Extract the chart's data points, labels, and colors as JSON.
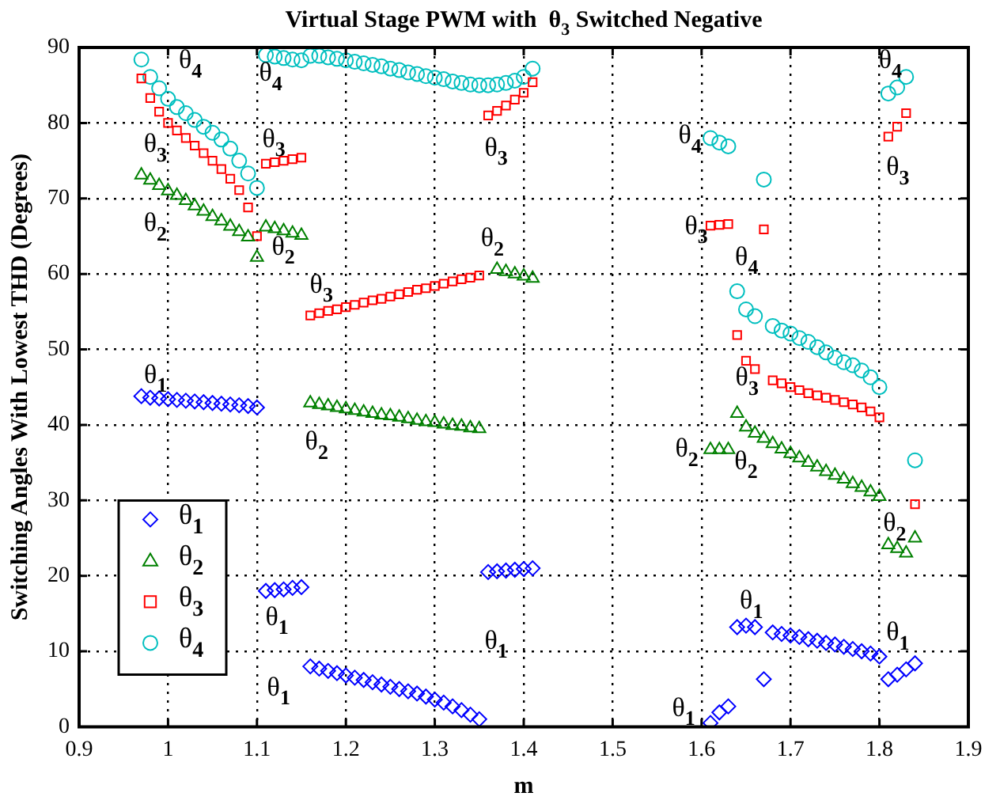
{
  "chart_data": {
    "type": "scatter",
    "title": "Virtual Stage PWM with  θ$_{3}$ Switched Negative",
    "xlabel": "m",
    "ylabel": "Switching Angles With Lowest THD (Degrees)",
    "xlim": [
      0.9,
      1.9
    ],
    "xticks": [
      0.9,
      1,
      1.1,
      1.2,
      1.3,
      1.4,
      1.5,
      1.6,
      1.7,
      1.8,
      1.9
    ],
    "ylim": [
      0,
      90
    ],
    "yticks": [
      0,
      10,
      20,
      30,
      40,
      50,
      60,
      70,
      80,
      90
    ],
    "grid": true,
    "legend": "bottom left",
    "series": [
      {
        "name": "θ$_{1}$",
        "color": "#0000ff",
        "marker": "diamond",
        "x": [
          0.97,
          0.98,
          0.99,
          1.0,
          1.01,
          1.02,
          1.03,
          1.04,
          1.05,
          1.06,
          1.07,
          1.08,
          1.09,
          1.1,
          1.11,
          1.12,
          1.13,
          1.14,
          1.15,
          1.16,
          1.17,
          1.18,
          1.19,
          1.2,
          1.21,
          1.22,
          1.23,
          1.24,
          1.25,
          1.26,
          1.27,
          1.28,
          1.29,
          1.3,
          1.31,
          1.32,
          1.33,
          1.34,
          1.35,
          1.36,
          1.37,
          1.38,
          1.39,
          1.4,
          1.41,
          1.61,
          1.62,
          1.63,
          1.64,
          1.65,
          1.66,
          1.67,
          1.68,
          1.69,
          1.7,
          1.71,
          1.72,
          1.73,
          1.74,
          1.75,
          1.76,
          1.77,
          1.78,
          1.79,
          1.8,
          1.81,
          1.82,
          1.83,
          1.84
        ],
        "values": [
          43.8,
          43.6,
          43.5,
          43.4,
          43.3,
          43.2,
          43.1,
          43.0,
          42.9,
          42.8,
          42.7,
          42.6,
          42.5,
          42.3,
          18.0,
          18.1,
          18.2,
          18.4,
          18.5,
          8.0,
          7.7,
          7.4,
          7.1,
          6.8,
          6.5,
          6.2,
          5.9,
          5.6,
          5.3,
          5.0,
          4.7,
          4.4,
          4.0,
          3.6,
          3.2,
          2.7,
          2.2,
          1.6,
          1.0,
          20.5,
          20.6,
          20.7,
          20.8,
          20.9,
          21.0,
          0.5,
          1.9,
          2.7,
          13.2,
          13.4,
          13.2,
          6.3,
          12.5,
          12.3,
          12.1,
          11.9,
          11.6,
          11.4,
          11.1,
          10.9,
          10.6,
          10.3,
          10.0,
          9.7,
          9.3,
          6.3,
          6.9,
          7.6,
          8.4
        ]
      },
      {
        "name": "θ$_{2}$",
        "color": "#008000",
        "marker": "triangle",
        "x": [
          0.97,
          0.98,
          0.99,
          1.0,
          1.01,
          1.02,
          1.03,
          1.04,
          1.05,
          1.06,
          1.07,
          1.08,
          1.09,
          1.1,
          1.11,
          1.12,
          1.13,
          1.14,
          1.15,
          1.16,
          1.17,
          1.18,
          1.19,
          1.2,
          1.21,
          1.22,
          1.23,
          1.24,
          1.25,
          1.26,
          1.27,
          1.28,
          1.29,
          1.3,
          1.31,
          1.32,
          1.33,
          1.34,
          1.35,
          1.37,
          1.38,
          1.39,
          1.4,
          1.41,
          1.61,
          1.62,
          1.63,
          1.64,
          1.65,
          1.66,
          1.67,
          1.68,
          1.69,
          1.7,
          1.71,
          1.72,
          1.73,
          1.74,
          1.75,
          1.76,
          1.77,
          1.78,
          1.79,
          1.8,
          1.81,
          1.82,
          1.83,
          1.84
        ],
        "values": [
          73.1,
          72.4,
          71.7,
          71.0,
          70.4,
          69.7,
          69.0,
          68.3,
          67.6,
          67.0,
          66.3,
          65.6,
          64.9,
          62.2,
          66.2,
          66.0,
          65.7,
          65.4,
          65.1,
          42.9,
          42.7,
          42.5,
          42.3,
          42.1,
          41.9,
          41.7,
          41.5,
          41.3,
          41.2,
          41.0,
          40.8,
          40.6,
          40.4,
          40.3,
          40.1,
          39.9,
          39.8,
          39.6,
          39.5,
          60.6,
          60.3,
          60.0,
          59.7,
          59.4,
          36.7,
          36.7,
          36.7,
          41.5,
          39.7,
          38.9,
          38.2,
          37.5,
          36.8,
          36.2,
          35.6,
          35.0,
          34.4,
          33.8,
          33.3,
          32.8,
          32.2,
          31.7,
          31.1,
          30.5,
          24.1,
          23.6,
          23.0,
          25.0
        ]
      },
      {
        "name": "θ$_{3}$",
        "color": "#ff0000",
        "marker": "square",
        "x": [
          0.97,
          0.98,
          0.99,
          1.0,
          1.01,
          1.02,
          1.03,
          1.04,
          1.05,
          1.06,
          1.07,
          1.08,
          1.09,
          1.1,
          1.11,
          1.12,
          1.13,
          1.14,
          1.15,
          1.16,
          1.17,
          1.18,
          1.19,
          1.2,
          1.21,
          1.22,
          1.23,
          1.24,
          1.25,
          1.26,
          1.27,
          1.28,
          1.29,
          1.3,
          1.31,
          1.32,
          1.33,
          1.34,
          1.35,
          1.36,
          1.37,
          1.38,
          1.39,
          1.4,
          1.41,
          1.61,
          1.62,
          1.63,
          1.64,
          1.65,
          1.66,
          1.67,
          1.68,
          1.69,
          1.7,
          1.71,
          1.72,
          1.73,
          1.74,
          1.75,
          1.76,
          1.77,
          1.78,
          1.79,
          1.8,
          1.81,
          1.82,
          1.83,
          1.84
        ],
        "values": [
          85.9,
          83.3,
          81.5,
          80.0,
          79.0,
          78.0,
          77.0,
          76.0,
          75.0,
          73.9,
          72.6,
          71.1,
          68.8,
          65.0,
          74.6,
          74.8,
          75.0,
          75.2,
          75.4,
          54.5,
          54.8,
          55.1,
          55.3,
          55.6,
          55.9,
          56.2,
          56.5,
          56.7,
          57.0,
          57.3,
          57.6,
          57.9,
          58.1,
          58.4,
          58.7,
          59.0,
          59.3,
          59.5,
          59.8,
          81.0,
          81.6,
          82.3,
          83.1,
          84.0,
          85.4,
          66.4,
          66.5,
          66.6,
          51.9,
          48.5,
          47.4,
          65.9,
          45.9,
          45.5,
          45.0,
          44.6,
          44.2,
          43.9,
          43.6,
          43.3,
          43.0,
          42.7,
          42.3,
          41.8,
          41.0,
          78.2,
          79.5,
          81.3,
          29.5
        ]
      },
      {
        "name": "θ$_{4}$",
        "color": "#00bfbf",
        "marker": "circle",
        "x": [
          0.97,
          0.98,
          0.99,
          1.0,
          1.01,
          1.02,
          1.03,
          1.04,
          1.05,
          1.06,
          1.07,
          1.08,
          1.09,
          1.1,
          1.11,
          1.12,
          1.13,
          1.14,
          1.15,
          1.16,
          1.17,
          1.18,
          1.19,
          1.2,
          1.21,
          1.22,
          1.23,
          1.24,
          1.25,
          1.26,
          1.27,
          1.28,
          1.29,
          1.3,
          1.31,
          1.32,
          1.33,
          1.34,
          1.35,
          1.36,
          1.37,
          1.38,
          1.39,
          1.4,
          1.41,
          1.61,
          1.62,
          1.63,
          1.64,
          1.65,
          1.66,
          1.67,
          1.68,
          1.69,
          1.7,
          1.71,
          1.72,
          1.73,
          1.74,
          1.75,
          1.76,
          1.77,
          1.78,
          1.79,
          1.8,
          1.81,
          1.82,
          1.83,
          1.84
        ],
        "values": [
          88.4,
          86.1,
          84.6,
          83.2,
          82.1,
          81.3,
          80.4,
          79.5,
          78.7,
          77.8,
          76.6,
          75.0,
          73.3,
          71.4,
          89.0,
          88.8,
          88.6,
          88.4,
          88.3,
          88.9,
          88.9,
          88.7,
          88.5,
          88.3,
          88.1,
          87.9,
          87.7,
          87.5,
          87.2,
          87.0,
          86.7,
          86.5,
          86.2,
          86.0,
          85.8,
          85.5,
          85.3,
          85.1,
          85.0,
          85.0,
          85.1,
          85.3,
          85.6,
          86.1,
          87.2,
          78.0,
          77.4,
          76.9,
          57.7,
          55.3,
          54.4,
          72.5,
          53.1,
          52.5,
          52.1,
          51.5,
          51.0,
          50.3,
          49.6,
          48.9,
          48.3,
          47.9,
          47.2,
          46.3,
          45.0,
          83.9,
          84.7,
          86.1,
          35.3
        ]
      }
    ],
    "annotations": [
      {
        "text": "θ$_{4}$",
        "x": 0.97,
        "y": 88.4
      },
      {
        "text": "θ$_{3}$",
        "x": 1.0,
        "y": 80.0
      },
      {
        "text": "θ$_{2}$",
        "x": 1.0,
        "y": 71.0
      },
      {
        "text": "θ$_{1}$",
        "x": 0.97,
        "y": 43.8
      },
      {
        "text": "θ$_{4}$",
        "x": 1.11,
        "y": 89.0
      },
      {
        "text": "θ$_{3}$",
        "x": 1.11,
        "y": 74.6
      },
      {
        "text": "θ$_{2}$",
        "x": 1.11,
        "y": 66.2
      },
      {
        "text": "θ$_{3}$",
        "x": 1.16,
        "y": 54.5
      },
      {
        "text": "θ$_{2}$",
        "x": 1.16,
        "y": 42.9
      },
      {
        "text": "θ$_{1}$",
        "x": 1.11,
        "y": 18.0
      },
      {
        "text": "θ$_{1}$",
        "x": 1.16,
        "y": 8.0
      },
      {
        "text": "θ$_{3}$",
        "x": 1.36,
        "y": 81.0
      },
      {
        "text": "θ$_{2}$",
        "x": 1.37,
        "y": 60.6
      },
      {
        "text": "θ$_{1}$",
        "x": 1.36,
        "y": 20.5
      },
      {
        "text": "θ$_{4}$",
        "x": 1.61,
        "y": 78.0
      },
      {
        "text": "θ$_{3}$",
        "x": 1.61,
        "y": 66.4
      },
      {
        "text": "θ$_{4}$",
        "x": 1.64,
        "y": 57.7
      },
      {
        "text": "θ$_{3}$",
        "x": 1.66,
        "y": 47.4
      },
      {
        "text": "θ$_{2}$",
        "x": 1.61,
        "y": 36.7
      },
      {
        "text": "θ$_{2}$",
        "x": 1.65,
        "y": 39.7
      },
      {
        "text": "θ$_{1}$",
        "x": 1.64,
        "y": 13.2
      },
      {
        "text": "θ$_{1}$",
        "x": 1.61,
        "y": 0.5
      },
      {
        "text": "θ$_{4}$",
        "x": 1.83,
        "y": 86.1
      },
      {
        "text": "θ$_{3}$",
        "x": 1.81,
        "y": 78.2
      },
      {
        "text": "θ$_{2}$",
        "x": 1.81,
        "y": 24.1
      },
      {
        "text": "θ$_{1}$",
        "x": 1.81,
        "y": 6.3
      }
    ]
  }
}
